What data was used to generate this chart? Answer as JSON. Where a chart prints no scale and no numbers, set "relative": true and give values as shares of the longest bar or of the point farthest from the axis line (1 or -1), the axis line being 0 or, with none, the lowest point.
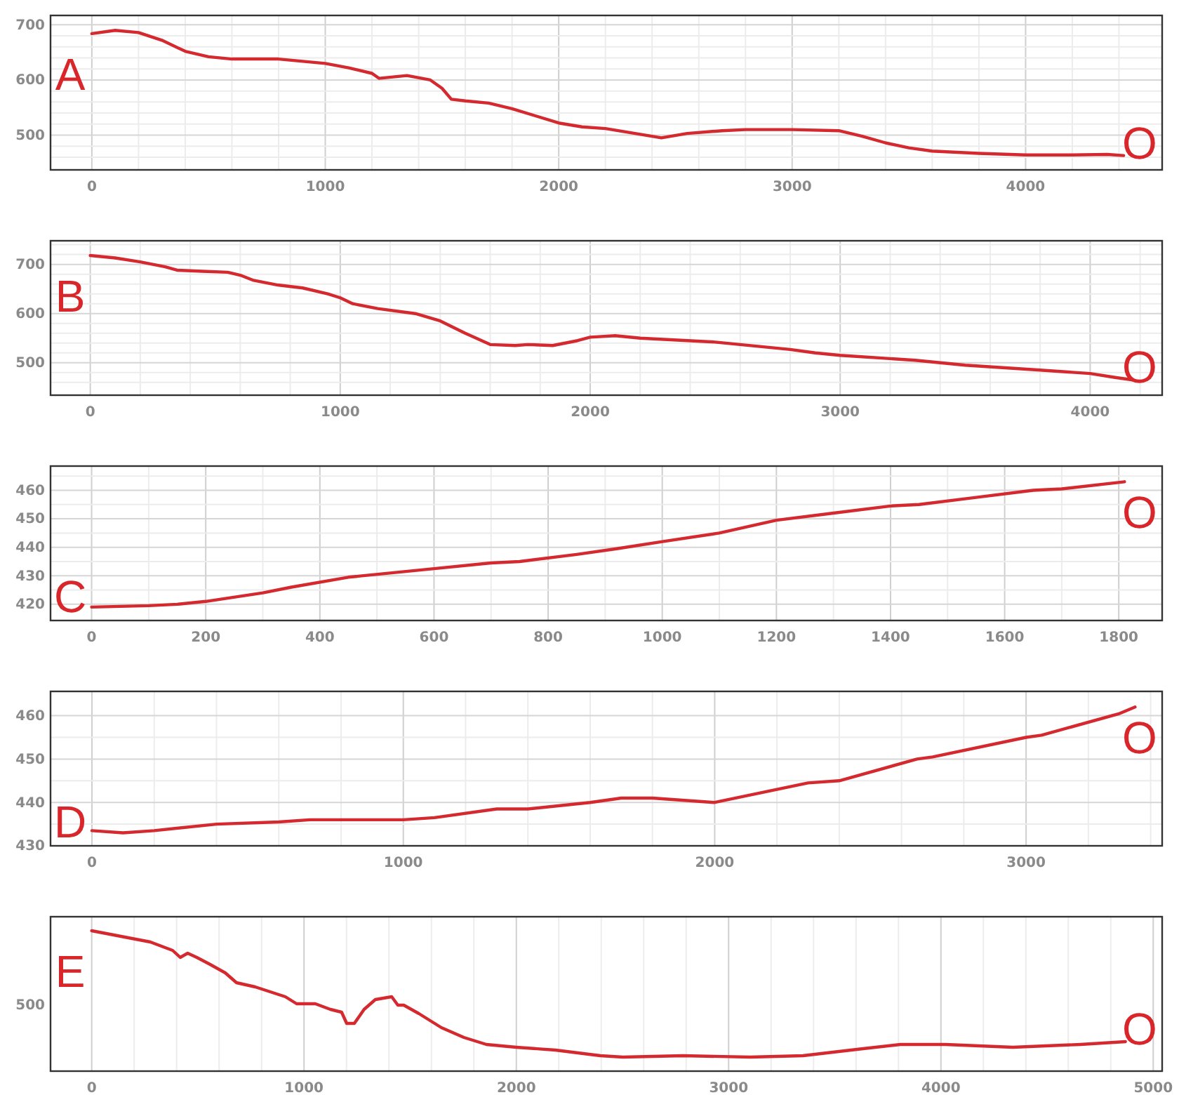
{
  "chart_data": [
    {
      "type": "line",
      "xlim": [
        -177,
        4585
      ],
      "ylim": [
        437,
        717
      ],
      "xticks": [
        0,
        {
          "value": 200,
          "label": null
        },
        {
          "value": 400,
          "label": null
        },
        {
          "value": 600,
          "label": null
        },
        {
          "value": 800,
          "label": null
        },
        1000,
        {
          "value": 1200,
          "label": null
        },
        {
          "value": 1400,
          "label": null
        },
        {
          "value": 1600,
          "label": null
        },
        {
          "value": 1800,
          "label": null
        },
        2000,
        {
          "value": 2200,
          "label": null
        },
        {
          "value": 2400,
          "label": null
        },
        {
          "value": 2600,
          "label": null
        },
        {
          "value": 2800,
          "label": null
        },
        3000,
        {
          "value": 3200,
          "label": null
        },
        {
          "value": 3400,
          "label": null
        },
        {
          "value": 3600,
          "label": null
        },
        {
          "value": 3800,
          "label": null
        },
        4000,
        {
          "value": 4200,
          "label": null
        },
        {
          "value": 4400,
          "label": null
        }
      ],
      "yticks": [
        {
          "value": 460,
          "label": null
        },
        {
          "value": 480,
          "label": null
        },
        500,
        {
          "value": 520,
          "label": null
        },
        {
          "value": 540,
          "label": null
        },
        {
          "value": 560,
          "label": null
        },
        {
          "value": 580,
          "label": null
        },
        600,
        {
          "value": 620,
          "label": null
        },
        {
          "value": 640,
          "label": null
        },
        {
          "value": 660,
          "label": null
        },
        {
          "value": 680,
          "label": null
        },
        700
      ],
      "grid": true,
      "marker": "none",
      "line_style": "solid",
      "series": [
        {
          "color": "#d42a2f",
          "x": [
            0,
            100,
            200,
            300,
            400,
            500,
            600,
            800,
            1000,
            1100,
            1200,
            1230,
            1350,
            1450,
            1500,
            1540,
            1600,
            1700,
            1800,
            1900,
            2000,
            2100,
            2200,
            2300,
            2440,
            2550,
            2700,
            2800,
            3000,
            3200,
            3300,
            3400,
            3500,
            3600,
            3800,
            4000,
            4200,
            4350,
            4420
          ],
          "values": [
            684,
            690,
            686,
            672,
            652,
            642,
            638,
            638,
            630,
            622,
            612,
            603,
            608,
            600,
            585,
            565,
            562,
            558,
            548,
            535,
            522,
            515,
            512,
            505,
            495,
            503,
            508,
            510,
            510,
            508,
            498,
            486,
            477,
            471,
            467,
            464,
            464,
            465,
            463
          ]
        }
      ],
      "annotations": [
        "A",
        "O"
      ]
    },
    {
      "type": "line",
      "xlim": [
        -159,
        4288
      ],
      "ylim": [
        434,
        748
      ],
      "xticks": [
        0,
        {
          "value": 200,
          "label": null
        },
        {
          "value": 400,
          "label": null
        },
        {
          "value": 600,
          "label": null
        },
        {
          "value": 800,
          "label": null
        },
        1000,
        {
          "value": 1200,
          "label": null
        },
        {
          "value": 1400,
          "label": null
        },
        {
          "value": 1600,
          "label": null
        },
        {
          "value": 1800,
          "label": null
        },
        2000,
        {
          "value": 2200,
          "label": null
        },
        {
          "value": 2400,
          "label": null
        },
        {
          "value": 2600,
          "label": null
        },
        {
          "value": 2800,
          "label": null
        },
        3000,
        {
          "value": 3200,
          "label": null
        },
        {
          "value": 3400,
          "label": null
        },
        {
          "value": 3600,
          "label": null
        },
        {
          "value": 3800,
          "label": null
        },
        4000,
        {
          "value": 4200,
          "label": null
        }
      ],
      "yticks": [
        {
          "value": 460,
          "label": null
        },
        {
          "value": 480,
          "label": null
        },
        500,
        {
          "value": 520,
          "label": null
        },
        {
          "value": 540,
          "label": null
        },
        {
          "value": 560,
          "label": null
        },
        {
          "value": 580,
          "label": null
        },
        600,
        {
          "value": 620,
          "label": null
        },
        {
          "value": 640,
          "label": null
        },
        {
          "value": 660,
          "label": null
        },
        {
          "value": 680,
          "label": null
        },
        700,
        {
          "value": 720,
          "label": null
        },
        {
          "value": 740,
          "label": null
        }
      ],
      "grid": true,
      "marker": "none",
      "line_style": "solid",
      "series": [
        {
          "color": "#d42a2f",
          "x": [
            0,
            100,
            200,
            300,
            350,
            450,
            550,
            600,
            650,
            750,
            850,
            950,
            1000,
            1050,
            1150,
            1300,
            1400,
            1500,
            1600,
            1700,
            1750,
            1850,
            1950,
            2000,
            2100,
            2200,
            2500,
            2800,
            2900,
            3000,
            3300,
            3500,
            3800,
            4000,
            4100,
            4170
          ],
          "values": [
            718,
            713,
            705,
            695,
            688,
            686,
            684,
            678,
            668,
            658,
            652,
            640,
            632,
            620,
            610,
            600,
            585,
            560,
            537,
            535,
            537,
            535,
            545,
            552,
            555,
            550,
            542,
            527,
            520,
            515,
            505,
            495,
            485,
            478,
            470,
            465
          ]
        }
      ],
      "annotations": [
        "B",
        "O"
      ]
    },
    {
      "type": "line",
      "xlim": [
        -72,
        1876
      ],
      "ylim": [
        414.3,
        468.5
      ],
      "xticks": [
        0,
        {
          "value": 100,
          "label": null
        },
        200,
        {
          "value": 300,
          "label": null
        },
        400,
        {
          "value": 500,
          "label": null
        },
        600,
        {
          "value": 700,
          "label": null
        },
        800,
        {
          "value": 900,
          "label": null
        },
        1000,
        {
          "value": 1100,
          "label": null
        },
        1200,
        {
          "value": 1300,
          "label": null
        },
        1400,
        {
          "value": 1500,
          "label": null
        },
        1600,
        {
          "value": 1700,
          "label": null
        },
        1800
      ],
      "yticks": [
        420,
        {
          "value": 425,
          "label": null
        },
        430,
        {
          "value": 435,
          "label": null
        },
        440,
        {
          "value": 445,
          "label": null
        },
        450,
        {
          "value": 455,
          "label": null
        },
        460,
        {
          "value": 465,
          "label": null
        }
      ],
      "grid": true,
      "marker": "none",
      "line_style": "solid",
      "series": [
        {
          "color": "#d42a2f",
          "x": [
            0,
            100,
            150,
            200,
            300,
            350,
            450,
            600,
            700,
            750,
            850,
            920,
            1000,
            1100,
            1200,
            1300,
            1400,
            1450,
            1550,
            1650,
            1700,
            1810
          ],
          "values": [
            419,
            419.5,
            420,
            421,
            424,
            426,
            429.5,
            432.5,
            434.5,
            435,
            437.5,
            439.5,
            442,
            445,
            449.5,
            452,
            454.5,
            455,
            457.5,
            460,
            460.5,
            463
          ]
        }
      ],
      "annotations": [
        "C",
        "O"
      ]
    },
    {
      "type": "line",
      "xlim": [
        -133,
        3437
      ],
      "ylim": [
        430,
        465.6
      ],
      "xticks": [
        0,
        {
          "value": 200,
          "label": null
        },
        {
          "value": 400,
          "label": null
        },
        {
          "value": 600,
          "label": null
        },
        {
          "value": 800,
          "label": null
        },
        1000,
        {
          "value": 1200,
          "label": null
        },
        {
          "value": 1400,
          "label": null
        },
        {
          "value": 1600,
          "label": null
        },
        {
          "value": 1800,
          "label": null
        },
        2000,
        {
          "value": 2200,
          "label": null
        },
        {
          "value": 2400,
          "label": null
        },
        {
          "value": 2600,
          "label": null
        },
        {
          "value": 2800,
          "label": null
        },
        3000,
        {
          "value": 3200,
          "label": null
        },
        {
          "value": 3400,
          "label": null
        }
      ],
      "yticks": [
        430,
        {
          "value": 435,
          "label": null
        },
        440,
        {
          "value": 445,
          "label": null
        },
        450,
        {
          "value": 455,
          "label": null
        },
        460
      ],
      "grid": true,
      "marker": "none",
      "line_style": "solid",
      "series": [
        {
          "color": "#d42a2f",
          "x": [
            0,
            100,
            200,
            400,
            600,
            700,
            1000,
            1100,
            1300,
            1400,
            1600,
            1700,
            1800,
            2000,
            2100,
            2300,
            2400,
            2650,
            2700,
            3000,
            3050,
            3300,
            3350
          ],
          "values": [
            433.5,
            433,
            433.5,
            435,
            435.5,
            436,
            436,
            436.5,
            438.5,
            438.5,
            440,
            441,
            441,
            440,
            441.5,
            444.5,
            445,
            450,
            450.5,
            455,
            455.5,
            460.5,
            462
          ]
        }
      ],
      "annotations": [
        "D",
        "O"
      ]
    },
    {
      "type": "line",
      "relative": true,
      "xlim": [
        -194,
        5042
      ],
      "xticks": [
        0,
        {
          "value": 200,
          "label": null
        },
        {
          "value": 400,
          "label": null
        },
        {
          "value": 600,
          "label": null
        },
        {
          "value": 800,
          "label": null
        },
        1000,
        {
          "value": 1200,
          "label": null
        },
        {
          "value": 1400,
          "label": null
        },
        {
          "value": 1600,
          "label": null
        },
        {
          "value": 1800,
          "label": null
        },
        2000,
        {
          "value": 2200,
          "label": null
        },
        {
          "value": 2400,
          "label": null
        },
        {
          "value": 2600,
          "label": null
        },
        {
          "value": 2800,
          "label": null
        },
        3000,
        {
          "value": 3200,
          "label": null
        },
        {
          "value": 3400,
          "label": null
        },
        {
          "value": 3600,
          "label": null
        },
        {
          "value": 3800,
          "label": null
        },
        4000,
        {
          "value": 4200,
          "label": null
        },
        {
          "value": 4400,
          "label": null
        },
        {
          "value": 4600,
          "label": null
        },
        {
          "value": 4800,
          "label": null
        },
        5000
      ],
      "grid": true,
      "marker": "none",
      "line_style": "solid",
      "series": [
        {
          "color": "#d42a2f",
          "x": [
            0,
            276,
            381,
            417,
            452,
            495,
            558,
            629,
            682,
            770,
            912,
            965,
            1053,
            1124,
            1177,
            1201,
            1237,
            1283,
            1336,
            1413,
            1442,
            1470,
            1541,
            1647,
            1753,
            1859,
            2000,
            2184,
            2396,
            2502,
            2784,
            3102,
            3350,
            3633,
            3809,
            4021,
            4339,
            4657,
            4869
          ],
          "values": [
            1.0,
            0.92,
            0.86,
            0.81,
            0.84,
            0.81,
            0.76,
            0.7,
            0.63,
            0.6,
            0.53,
            0.48,
            0.48,
            0.44,
            0.42,
            0.34,
            0.34,
            0.44,
            0.51,
            0.53,
            0.47,
            0.47,
            0.41,
            0.31,
            0.24,
            0.19,
            0.17,
            0.15,
            0.11,
            0.1,
            0.11,
            0.1,
            0.11,
            0.16,
            0.19,
            0.19,
            0.17,
            0.19,
            0.21
          ]
        }
      ],
      "annotations": [
        "E",
        "O",
        "500"
      ]
    }
  ]
}
